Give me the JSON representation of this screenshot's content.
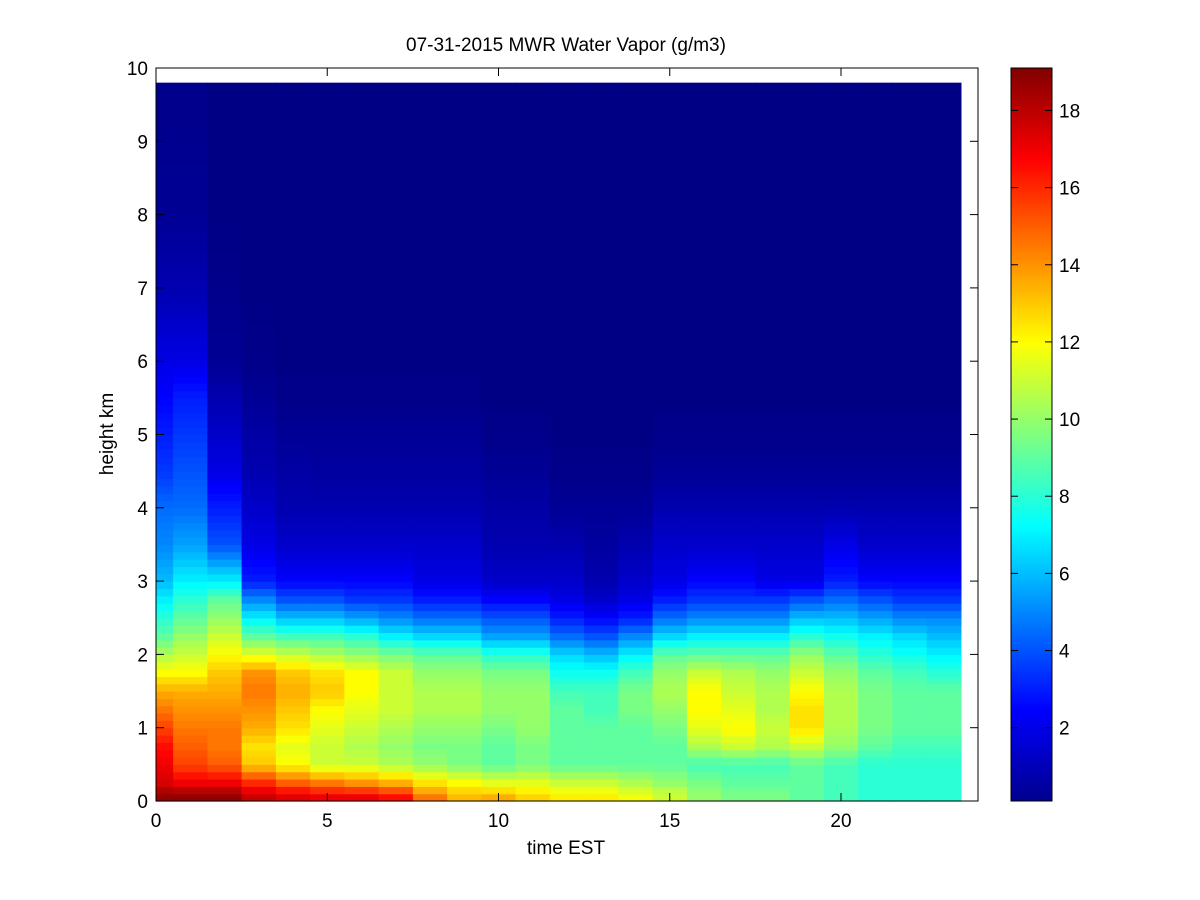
{
  "chart_data": {
    "type": "heatmap",
    "title": "07-31-2015 MWR Water Vapor (g/m3)",
    "xlabel": "time EST",
    "ylabel": "height km",
    "xlim": [
      0,
      24
    ],
    "ylim": [
      0,
      10
    ],
    "x_ticks": [
      0,
      5,
      10,
      15,
      20
    ],
    "y_ticks": [
      0,
      1,
      2,
      3,
      4,
      5,
      6,
      7,
      8,
      9,
      10
    ],
    "colorbar": {
      "colormap": "jet",
      "range": [
        0.1,
        19.1
      ],
      "ticks": [
        2,
        4,
        6,
        8,
        10,
        12,
        14,
        16,
        18
      ]
    },
    "grid": false,
    "x_centers": [
      0.25,
      1.0,
      2.0,
      3.0,
      4.0,
      5.0,
      6.0,
      7.0,
      8.0,
      9.0,
      10.0,
      11.0,
      12.0,
      13.0,
      14.0,
      15.0,
      16.0,
      17.0,
      18.0,
      19.0,
      20.0,
      21.0,
      22.0,
      23.0
    ],
    "x_edges": [
      0.0,
      0.5,
      1.5,
      2.5,
      3.5,
      4.5,
      5.5,
      6.5,
      7.5,
      8.5,
      9.5,
      10.5,
      11.5,
      12.5,
      13.5,
      14.5,
      15.5,
      16.5,
      17.5,
      18.5,
      19.5,
      20.5,
      21.5,
      22.5,
      23.5
    ],
    "height_knots_km": [
      0.0,
      0.1,
      0.25,
      0.5,
      0.75,
      1.0,
      1.25,
      1.5,
      1.75,
      2.0,
      2.25,
      2.5,
      2.75,
      3.0,
      3.5,
      4.0,
      4.5,
      5.0,
      5.5,
      6.0,
      7.0,
      8.0,
      9.75
    ],
    "water_vapor_g_m3": [
      [
        19.0,
        18.5,
        17.5,
        17.0,
        16.5,
        15.5,
        14.5,
        13.5,
        12.0,
        10.5,
        9.0,
        8.0,
        7.0,
        6.0,
        5.0,
        4.5,
        3.5,
        3.0,
        2.5,
        2.0,
        1.0,
        0.5,
        0.3
      ],
      [
        19.0,
        18.5,
        17.0,
        15.5,
        15.0,
        14.5,
        14.0,
        13.5,
        12.0,
        11.0,
        10.0,
        9.0,
        8.0,
        7.0,
        5.5,
        4.5,
        4.0,
        3.5,
        3.0,
        2.0,
        1.0,
        0.5,
        0.3
      ],
      [
        19.0,
        18.5,
        17.0,
        15.0,
        14.5,
        14.5,
        14.0,
        13.5,
        13.0,
        12.0,
        11.0,
        10.0,
        9.0,
        7.0,
        4.0,
        3.0,
        2.0,
        1.5,
        1.0,
        0.5,
        0.3,
        0.2,
        0.2
      ],
      [
        18.0,
        17.5,
        16.0,
        13.0,
        12.5,
        13.5,
        14.0,
        14.5,
        14.0,
        11.5,
        9.0,
        7.0,
        5.0,
        3.0,
        2.0,
        1.5,
        1.0,
        0.8,
        0.5,
        0.3,
        0.2,
        0.2,
        0.2
      ],
      [
        17.5,
        17.0,
        15.0,
        12.0,
        11.5,
        12.5,
        13.0,
        13.5,
        13.0,
        11.0,
        8.5,
        6.0,
        4.0,
        2.5,
        1.5,
        1.0,
        0.8,
        0.5,
        0.3,
        0.2,
        0.2,
        0.2,
        0.2
      ],
      [
        17.5,
        16.5,
        14.5,
        11.0,
        11.0,
        11.5,
        12.0,
        13.0,
        12.5,
        10.5,
        8.5,
        6.0,
        4.0,
        2.5,
        1.5,
        1.0,
        0.7,
        0.5,
        0.3,
        0.2,
        0.2,
        0.2,
        0.2
      ],
      [
        17.5,
        16.5,
        14.0,
        11.0,
        10.5,
        11.0,
        11.5,
        12.0,
        12.0,
        10.0,
        8.0,
        5.5,
        3.5,
        2.5,
        1.5,
        1.0,
        0.7,
        0.5,
        0.3,
        0.2,
        0.2,
        0.2,
        0.2
      ],
      [
        17.0,
        16.0,
        13.5,
        10.5,
        10.0,
        10.5,
        11.0,
        11.0,
        11.0,
        9.5,
        7.0,
        5.0,
        3.5,
        2.5,
        1.5,
        1.0,
        0.7,
        0.5,
        0.3,
        0.2,
        0.2,
        0.2,
        0.2
      ],
      [
        15.0,
        14.0,
        12.5,
        10.0,
        9.5,
        10.0,
        10.5,
        10.5,
        10.0,
        9.0,
        6.5,
        4.5,
        3.0,
        2.0,
        1.5,
        1.0,
        0.7,
        0.5,
        0.3,
        0.2,
        0.2,
        0.2,
        0.2
      ],
      [
        13.5,
        13.0,
        12.0,
        9.5,
        9.5,
        10.0,
        10.5,
        10.5,
        10.0,
        9.0,
        6.5,
        4.5,
        3.0,
        2.0,
        1.5,
        1.0,
        0.7,
        0.5,
        0.3,
        0.2,
        0.2,
        0.2,
        0.2
      ],
      [
        14.0,
        13.0,
        11.5,
        9.0,
        9.0,
        9.5,
        10.0,
        10.0,
        9.5,
        8.0,
        5.5,
        4.0,
        2.5,
        1.5,
        1.0,
        0.8,
        0.5,
        0.3,
        0.2,
        0.2,
        0.2,
        0.2,
        0.2
      ],
      [
        13.0,
        12.5,
        11.5,
        9.5,
        9.5,
        10.0,
        10.0,
        10.0,
        9.5,
        8.0,
        5.5,
        4.0,
        2.5,
        1.5,
        1.0,
        0.8,
        0.5,
        0.3,
        0.2,
        0.2,
        0.2,
        0.2,
        0.2
      ],
      [
        12.5,
        12.0,
        11.0,
        9.0,
        9.0,
        9.0,
        9.0,
        8.5,
        7.5,
        6.5,
        4.5,
        3.0,
        2.0,
        1.5,
        1.0,
        0.5,
        0.3,
        0.2,
        0.2,
        0.2,
        0.2,
        0.2,
        0.2
      ],
      [
        12.5,
        12.0,
        11.0,
        9.0,
        9.0,
        9.0,
        8.5,
        8.5,
        7.5,
        6.0,
        4.0,
        2.5,
        1.5,
        1.0,
        0.7,
        0.5,
        0.3,
        0.2,
        0.2,
        0.2,
        0.2,
        0.2,
        0.2
      ],
      [
        12.0,
        11.5,
        10.5,
        9.0,
        9.0,
        9.0,
        9.5,
        9.5,
        8.5,
        7.0,
        5.0,
        3.0,
        2.0,
        1.5,
        1.0,
        0.5,
        0.3,
        0.2,
        0.2,
        0.2,
        0.2,
        0.2,
        0.2
      ],
      [
        11.0,
        11.0,
        10.0,
        9.0,
        9.0,
        9.5,
        10.0,
        10.5,
        10.0,
        9.0,
        6.5,
        4.5,
        3.0,
        2.0,
        1.5,
        1.0,
        0.5,
        0.3,
        0.2,
        0.2,
        0.2,
        0.2,
        0.2
      ],
      [
        10.0,
        10.0,
        9.5,
        8.5,
        10.5,
        11.5,
        12.0,
        12.0,
        11.0,
        9.0,
        7.0,
        5.0,
        3.5,
        2.5,
        1.5,
        1.0,
        0.5,
        0.3,
        0.2,
        0.2,
        0.2,
        0.2,
        0.2
      ],
      [
        9.5,
        9.5,
        9.0,
        8.5,
        11.0,
        12.0,
        11.5,
        11.0,
        10.5,
        9.0,
        7.0,
        5.0,
        3.5,
        2.5,
        1.5,
        1.0,
        0.5,
        0.3,
        0.2,
        0.2,
        0.2,
        0.2,
        0.2
      ],
      [
        9.5,
        9.5,
        9.0,
        8.5,
        10.5,
        11.0,
        10.5,
        10.5,
        10.0,
        9.0,
        7.0,
        5.0,
        3.5,
        2.0,
        1.5,
        1.0,
        0.5,
        0.3,
        0.2,
        0.2,
        0.2,
        0.2,
        0.2
      ],
      [
        9.0,
        9.0,
        9.0,
        9.0,
        11.0,
        12.5,
        12.5,
        12.0,
        11.0,
        10.0,
        8.0,
        6.0,
        4.0,
        2.0,
        1.5,
        1.0,
        0.5,
        0.3,
        0.2,
        0.2,
        0.2,
        0.2,
        0.2
      ],
      [
        8.5,
        8.5,
        8.5,
        8.5,
        10.0,
        10.5,
        10.5,
        10.5,
        10.0,
        9.0,
        7.5,
        6.0,
        4.5,
        3.0,
        2.0,
        1.0,
        0.5,
        0.3,
        0.2,
        0.2,
        0.2,
        0.2,
        0.2
      ],
      [
        8.0,
        8.0,
        8.0,
        8.0,
        9.0,
        9.5,
        9.5,
        9.5,
        9.0,
        8.0,
        7.0,
        5.5,
        4.0,
        2.5,
        1.5,
        1.0,
        0.5,
        0.3,
        0.2,
        0.2,
        0.2,
        0.2,
        0.2
      ],
      [
        8.0,
        8.0,
        8.0,
        8.0,
        8.5,
        9.0,
        9.0,
        9.0,
        8.5,
        7.5,
        6.5,
        5.0,
        3.5,
        2.5,
        1.5,
        1.0,
        0.5,
        0.3,
        0.2,
        0.2,
        0.2,
        0.2,
        0.2
      ],
      [
        8.0,
        8.0,
        8.0,
        8.0,
        8.5,
        9.0,
        9.0,
        9.0,
        8.0,
        7.0,
        6.0,
        5.0,
        3.5,
        2.5,
        1.5,
        1.0,
        0.5,
        0.3,
        0.2,
        0.2,
        0.2,
        0.2,
        0.2
      ]
    ]
  }
}
